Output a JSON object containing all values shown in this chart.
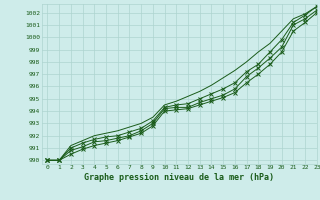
{
  "title": "Graphe pression niveau de la mer (hPa)",
  "background_color": "#ceecea",
  "grid_color": "#aed4cf",
  "line_color": "#1a5c1a",
  "xlim": [
    -0.5,
    23
  ],
  "ylim": [
    989.7,
    1002.7
  ],
  "xticks": [
    0,
    1,
    2,
    3,
    4,
    5,
    6,
    7,
    8,
    9,
    10,
    11,
    12,
    13,
    14,
    15,
    16,
    17,
    18,
    19,
    20,
    21,
    22,
    23
  ],
  "yticks": [
    990,
    991,
    992,
    993,
    994,
    995,
    996,
    997,
    998,
    999,
    1000,
    1001,
    1002
  ],
  "line1_x": [
    0,
    1,
    2,
    3,
    4,
    5,
    6,
    7,
    8,
    9,
    10,
    11,
    12,
    13,
    14,
    15,
    16,
    17,
    18,
    19,
    20,
    21,
    22,
    23
  ],
  "line1_y": [
    990.0,
    990.0,
    990.8,
    991.1,
    991.5,
    991.6,
    991.8,
    992.0,
    992.4,
    993.0,
    994.2,
    994.3,
    994.3,
    994.7,
    995.0,
    995.3,
    995.8,
    996.8,
    997.5,
    998.3,
    999.2,
    1001.0,
    1001.5,
    1002.2
  ],
  "line2_x": [
    0,
    1,
    2,
    3,
    4,
    5,
    6,
    7,
    8,
    9,
    10,
    11,
    12,
    13,
    14,
    15,
    16,
    17,
    18,
    19,
    20,
    21,
    22,
    23
  ],
  "line2_y": [
    990.0,
    990.0,
    991.0,
    991.4,
    991.7,
    991.9,
    992.0,
    992.3,
    992.6,
    993.2,
    994.3,
    994.5,
    994.6,
    995.0,
    995.4,
    995.8,
    996.3,
    997.2,
    997.8,
    998.8,
    999.8,
    1001.2,
    1001.8,
    1002.5
  ],
  "line3_x": [
    0,
    1,
    2,
    3,
    4,
    5,
    6,
    7,
    8,
    9,
    10,
    11,
    12,
    13,
    14,
    15,
    16,
    17,
    18,
    19,
    20,
    21,
    22,
    23
  ],
  "line3_y": [
    990.0,
    990.0,
    991.2,
    991.6,
    992.0,
    992.2,
    992.4,
    992.7,
    993.0,
    993.5,
    994.5,
    994.8,
    995.2,
    995.6,
    996.1,
    996.7,
    997.3,
    998.0,
    998.8,
    999.5,
    1000.5,
    1001.5,
    1001.9,
    1002.5
  ],
  "line4_x": [
    0,
    1,
    2,
    3,
    4,
    5,
    6,
    7,
    8,
    9,
    10,
    11,
    12,
    13,
    14,
    15,
    16,
    17,
    18,
    19,
    20,
    21,
    22,
    23
  ],
  "line4_y": [
    990.0,
    990.0,
    990.5,
    990.9,
    991.2,
    991.4,
    991.6,
    991.9,
    992.2,
    992.8,
    994.0,
    994.1,
    994.2,
    994.5,
    994.8,
    995.1,
    995.5,
    996.3,
    997.0,
    997.8,
    998.8,
    1000.5,
    1001.2,
    1002.0
  ]
}
